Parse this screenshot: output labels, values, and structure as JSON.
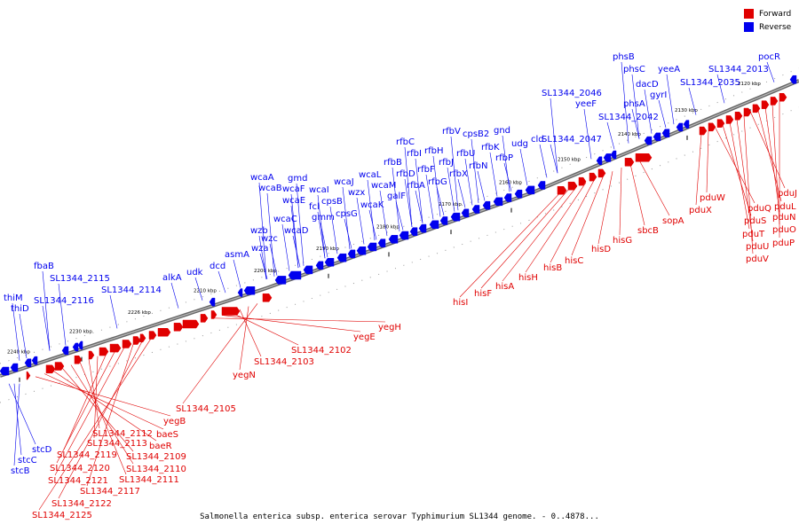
{
  "legend": {
    "forward_label": "Forward",
    "reverse_label": "Reverse",
    "forward_color": "#e00000",
    "reverse_color": "#0000ee"
  },
  "caption": "Salmonella enterica subsp. enterica serovar Typhimurium SL1344 genome. - 0..4878...",
  "ticks": [
    "2240 kbp",
    "2230 kbp",
    "2226 kbp",
    "2210 kbp",
    "2200 kbp",
    "2190 kbp",
    "2180 kbp",
    "2170 kbp",
    "2160 kbp",
    "2150 kbp",
    "2140 kbp",
    "2130 kbp",
    "2120 kbp"
  ],
  "reverse_labels": [
    "thiM",
    "thiD",
    "fbaB",
    "SL1344_2116",
    "SL1344_2115",
    "SL1344_2114",
    "alkA",
    "udk",
    "dcd",
    "asmA",
    "wzb",
    "wza",
    "wzc",
    "wcaC",
    "wcaD",
    "wcaB",
    "wcaA",
    "wcaE",
    "wcaF",
    "gmd",
    "fcl",
    "wcaI",
    "gmm",
    "cpsB",
    "cpsG",
    "wcaJ",
    "wzx",
    "wcaL",
    "wcaM",
    "wcaK",
    "galF",
    "rfbB",
    "rfbC",
    "rfbI",
    "rfbD",
    "rfbF",
    "rfbA",
    "rfbH",
    "rfbG",
    "rfbJ",
    "rfbX",
    "rfbU",
    "rfbV",
    "cpsB2",
    "rfbN",
    "rfbK",
    "rfbP",
    "gnd",
    "udg",
    "cld",
    "SL1344_2046",
    "yeeF",
    "SL1344_2047",
    "phsB",
    "phsC",
    "dacD",
    "phsA",
    "gyrI",
    "yeeA",
    "SL1344_2042",
    "SL1344_2035",
    "SL1344_2013",
    "pocR",
    "stcD",
    "stcC",
    "stcB"
  ],
  "forward_labels": [
    "yegH",
    "yegE",
    "SL1344_2102",
    "SL1344_2103",
    "yegN",
    "SL1344_2105",
    "yegB",
    "baeS",
    "baeR",
    "SL1344_2109",
    "SL1344_2110",
    "SL1344_2111",
    "SL1344_2112",
    "SL1344_2113",
    "SL1344_2119",
    "SL1344_2120",
    "SL1344_2121",
    "SL1344_2117",
    "SL1344_2122",
    "SL1344_2125",
    "hisI",
    "hisF",
    "hisA",
    "hisH",
    "hisB",
    "hisC",
    "hisD",
    "hisG",
    "sbcB",
    "sopA",
    "pduX",
    "pduW",
    "pduQ",
    "pduS",
    "pduT",
    "pduU",
    "pduV",
    "pduJ",
    "pduL",
    "pduN",
    "pduO",
    "pduP"
  ]
}
